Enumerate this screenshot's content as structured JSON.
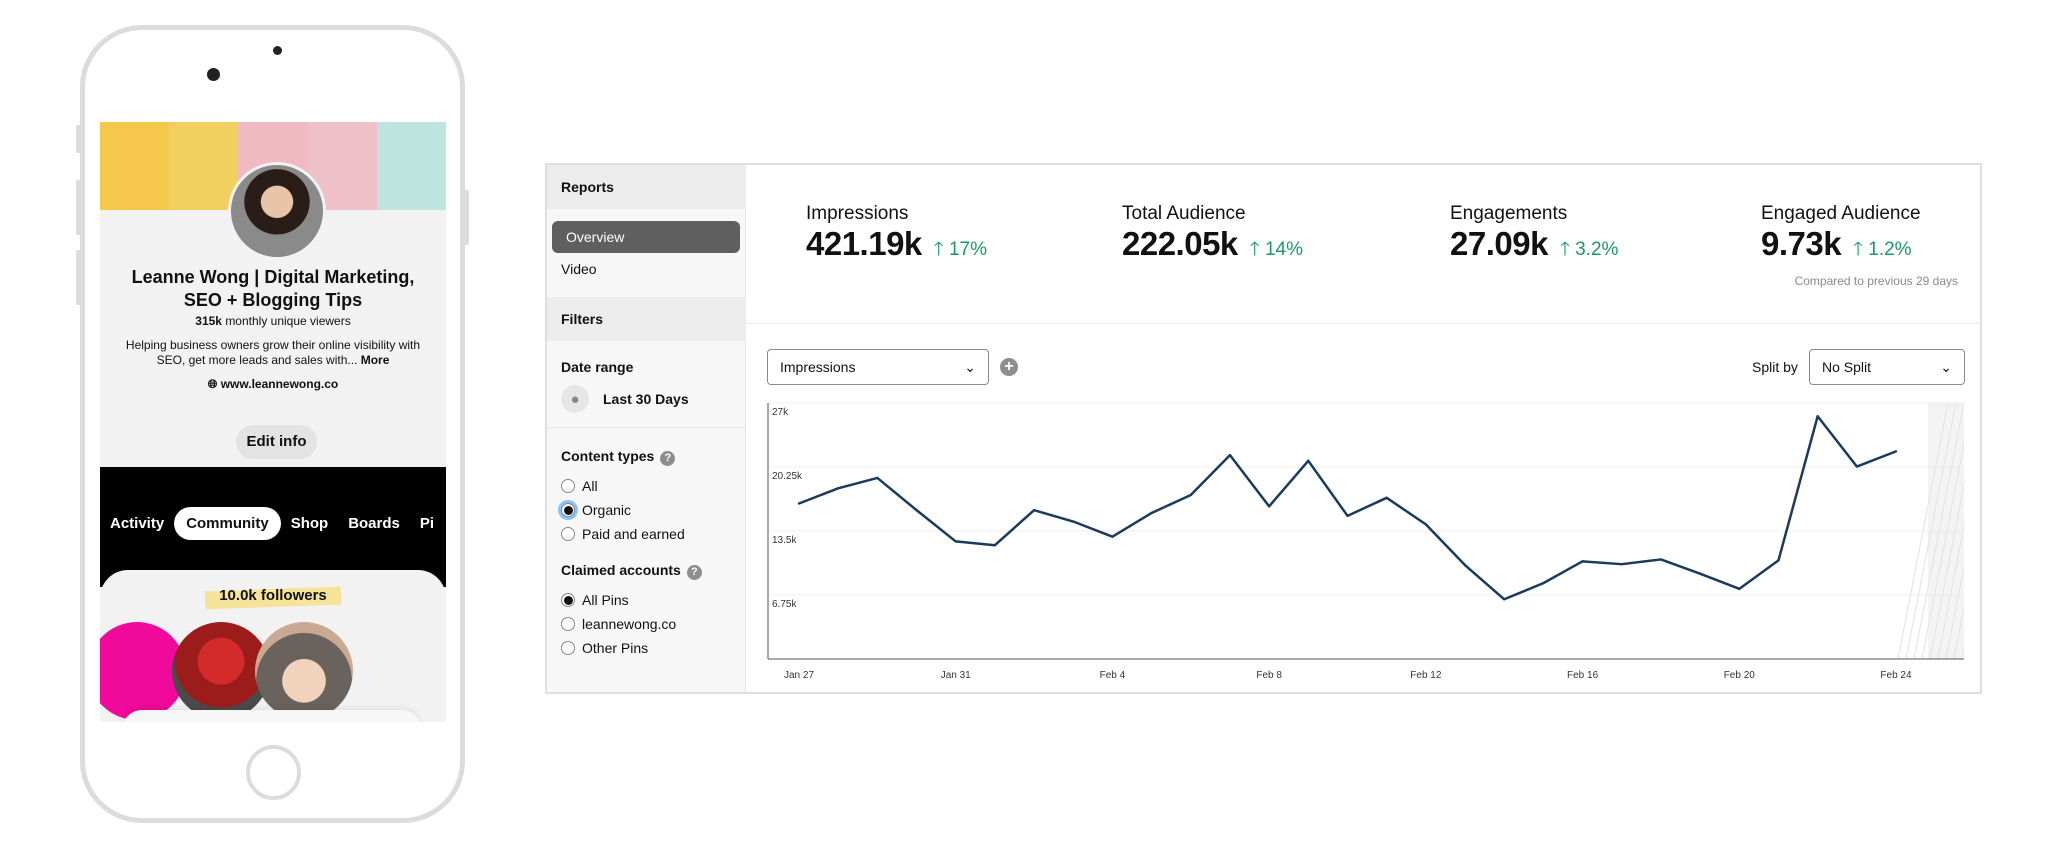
{
  "phone": {
    "profile_name": "Leanne Wong | Digital Marketing, SEO + Blogging Tips",
    "viewers_count": "315k",
    "viewers_label": "monthly unique viewers",
    "bio": "Helping business owners grow their online visibility with SEO, get more leads and sales with...",
    "more_label": "More",
    "website": "www.leannewong.co",
    "edit_label": "Edit info",
    "tabs": [
      {
        "label": "Activity"
      },
      {
        "label": "Community",
        "active": true
      },
      {
        "label": "Shop"
      },
      {
        "label": "Boards"
      },
      {
        "label": "Pi"
      }
    ],
    "followers": "10.0k followers"
  },
  "sidebar": {
    "reports_label": "Reports",
    "items": [
      {
        "label": "Overview",
        "active": true
      },
      {
        "label": "Video"
      }
    ],
    "filters_label": "Filters",
    "date_range_label": "Date range",
    "date_range_value": "Last 30 Days",
    "content_types_label": "Content types",
    "content_types": [
      {
        "label": "All",
        "checked": false
      },
      {
        "label": "Organic",
        "checked": true
      },
      {
        "label": "Paid and earned",
        "checked": false
      }
    ],
    "claimed_label": "Claimed accounts",
    "claimed": [
      {
        "label": "All Pins",
        "checked": true
      },
      {
        "label": "leannewong.co",
        "checked": false
      },
      {
        "label": "Other Pins",
        "checked": false
      }
    ]
  },
  "stats": [
    {
      "title": "Impressions",
      "value": "421.19k",
      "delta": "17%"
    },
    {
      "title": "Total Audience",
      "value": "222.05k",
      "delta": "14%"
    },
    {
      "title": "Engagements",
      "value": "27.09k",
      "delta": "3.2%"
    },
    {
      "title": "Engaged Audience",
      "value": "9.73k",
      "delta": "1.2%"
    }
  ],
  "compare_note": "Compared to previous 29 days",
  "controls": {
    "metric": "Impressions",
    "split_label": "Split by",
    "split_value": "No Split"
  },
  "colors": {
    "line": "#1b3a5c",
    "positive": "#1a9a63",
    "pink": "#f0099b"
  },
  "chart_data": {
    "type": "line",
    "ylim": [
      0,
      27000
    ],
    "yticks": [
      "27k",
      "20.25k",
      "13.5k",
      "6.75k"
    ],
    "ytick_values": [
      27000,
      20250,
      13500,
      6750
    ],
    "xticks": [
      "Jan 27",
      "Jan 31",
      "Feb 4",
      "Feb 8",
      "Feb 12",
      "Feb 16",
      "Feb 20",
      "Feb 24"
    ],
    "x": [
      "Jan 27",
      "Jan 28",
      "Jan 29",
      "Jan 30",
      "Jan 31",
      "Feb 1",
      "Feb 2",
      "Feb 3",
      "Feb 4",
      "Feb 5",
      "Feb 6",
      "Feb 7",
      "Feb 8",
      "Feb 9",
      "Feb 10",
      "Feb 11",
      "Feb 12",
      "Feb 13",
      "Feb 14",
      "Feb 15",
      "Feb 16",
      "Feb 17",
      "Feb 18",
      "Feb 19",
      "Feb 20",
      "Feb 21",
      "Feb 22",
      "Feb 23",
      "Feb 24"
    ],
    "values": [
      16400,
      18000,
      19100,
      15700,
      12400,
      12000,
      15700,
      14500,
      12900,
      15400,
      17300,
      21500,
      16100,
      20900,
      15100,
      17000,
      14200,
      9900,
      6300,
      8000,
      10300,
      10000,
      10500,
      9000,
      7400,
      10400,
      25600,
      20300,
      21900
    ],
    "grid": true
  }
}
